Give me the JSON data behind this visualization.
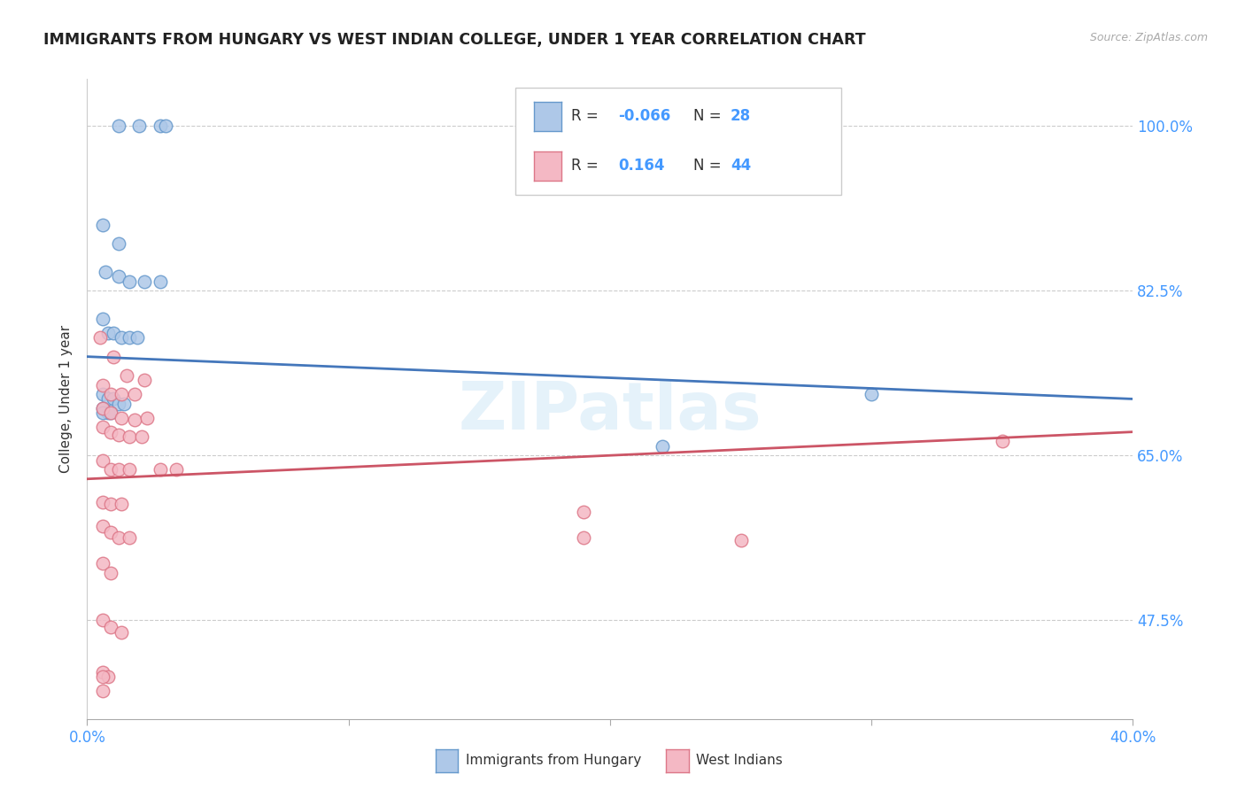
{
  "title": "IMMIGRANTS FROM HUNGARY VS WEST INDIAN COLLEGE, UNDER 1 YEAR CORRELATION CHART",
  "source": "Source: ZipAtlas.com",
  "ylabel": "College, Under 1 year",
  "xlim": [
    0.0,
    0.4
  ],
  "ylim": [
    0.37,
    1.05
  ],
  "legend": {
    "blue_R": "-0.066",
    "blue_N": "28",
    "pink_R": "0.164",
    "pink_N": "44"
  },
  "blue_scatter_x": [
    0.012,
    0.02,
    0.028,
    0.03,
    0.006,
    0.012,
    0.007,
    0.012,
    0.016,
    0.022,
    0.028,
    0.006,
    0.008,
    0.01,
    0.013,
    0.016,
    0.019,
    0.006,
    0.008,
    0.01,
    0.012,
    0.014,
    0.006,
    0.008,
    0.3,
    0.22,
    0.006,
    0.009
  ],
  "blue_scatter_y": [
    1.0,
    1.0,
    1.0,
    1.0,
    0.895,
    0.875,
    0.845,
    0.84,
    0.835,
    0.835,
    0.835,
    0.795,
    0.78,
    0.78,
    0.775,
    0.775,
    0.775,
    0.715,
    0.71,
    0.71,
    0.705,
    0.705,
    0.7,
    0.695,
    0.715,
    0.66,
    0.695,
    0.695
  ],
  "pink_scatter_x": [
    0.005,
    0.01,
    0.015,
    0.022,
    0.006,
    0.009,
    0.013,
    0.018,
    0.006,
    0.009,
    0.013,
    0.018,
    0.023,
    0.006,
    0.009,
    0.012,
    0.016,
    0.021,
    0.006,
    0.009,
    0.012,
    0.016,
    0.028,
    0.034,
    0.006,
    0.009,
    0.013,
    0.006,
    0.009,
    0.012,
    0.016,
    0.006,
    0.009,
    0.006,
    0.009,
    0.013,
    0.19,
    0.006,
    0.008,
    0.006,
    0.006,
    0.35,
    0.19,
    0.25
  ],
  "pink_scatter_y": [
    0.775,
    0.755,
    0.735,
    0.73,
    0.725,
    0.715,
    0.715,
    0.715,
    0.7,
    0.695,
    0.69,
    0.688,
    0.69,
    0.68,
    0.675,
    0.672,
    0.67,
    0.67,
    0.645,
    0.635,
    0.635,
    0.635,
    0.635,
    0.635,
    0.6,
    0.598,
    0.598,
    0.575,
    0.568,
    0.563,
    0.563,
    0.535,
    0.525,
    0.475,
    0.468,
    0.462,
    0.563,
    0.42,
    0.415,
    0.415,
    0.4,
    0.665,
    0.59,
    0.56
  ],
  "blue_line_x": [
    0.0,
    0.4
  ],
  "blue_line_y": [
    0.755,
    0.71
  ],
  "pink_line_x": [
    0.0,
    0.4
  ],
  "pink_line_y": [
    0.625,
    0.675
  ],
  "blue_color": "#aec8e8",
  "pink_color": "#f4b8c4",
  "blue_edge_color": "#6699cc",
  "pink_edge_color": "#dd7788",
  "blue_line_color": "#4477bb",
  "pink_line_color": "#cc5566",
  "grid_color": "#cccccc",
  "background_color": "#ffffff",
  "watermark": "ZIPatlas"
}
